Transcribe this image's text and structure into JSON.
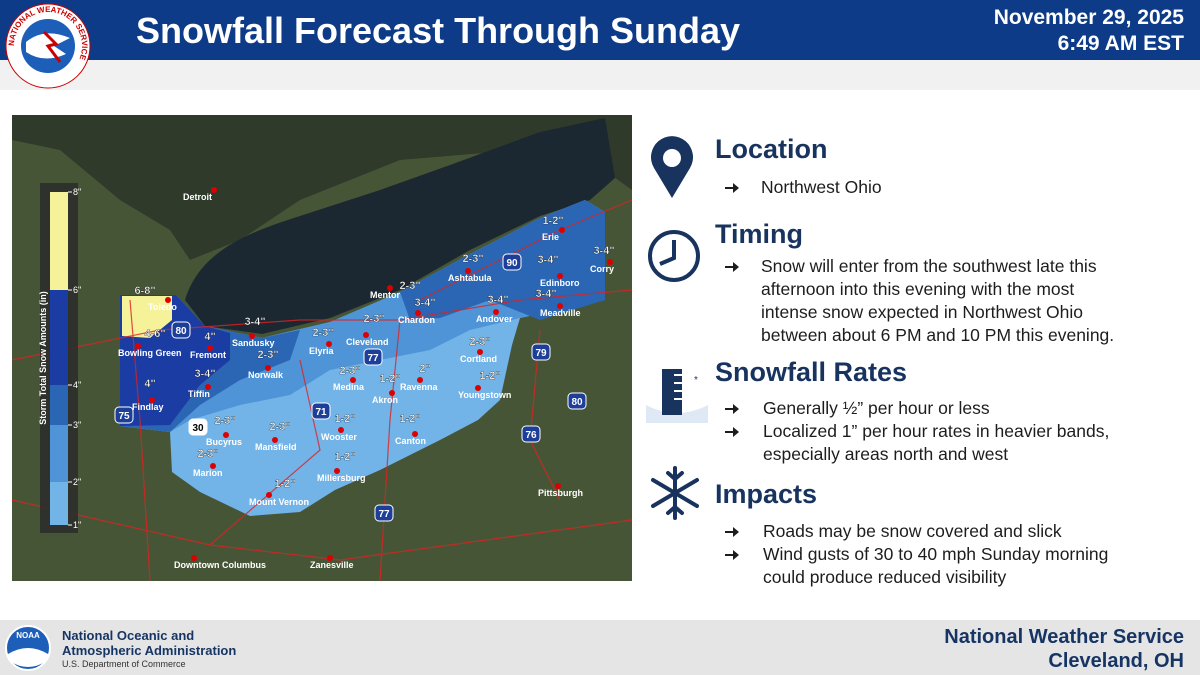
{
  "header": {
    "title": "Snowfall Forecast Through Sunday",
    "date": "November 29, 2025",
    "time": "6:49 AM EST",
    "logo_text": "NATIONAL WEATHER SERVICE"
  },
  "map": {
    "legend_title": "Storm Total Snow Amounts (in)",
    "legend_ticks": [
      "8\"",
      "6\"",
      "4\"",
      "3\"",
      "2\"",
      "1\""
    ],
    "cities": [
      "Detroit",
      "Toledo",
      "Bowling Green",
      "Findlay",
      "Fremont",
      "Tiffin",
      "Sandusky",
      "Norwalk",
      "Elyria",
      "Cleveland",
      "Medina",
      "Akron",
      "Ravenna",
      "Mentor",
      "Chardon",
      "Ashtabula",
      "Andover",
      "Erie",
      "Edinboro",
      "Meadville",
      "Corry",
      "Cortland",
      "Youngstown",
      "Canton",
      "Wooster",
      "Mansfield",
      "Bucyrus",
      "Marion",
      "Millersburg",
      "Mount Vernon",
      "Downtown Columbus",
      "Zanesville",
      "Pittsburgh"
    ],
    "amounts": [
      "6-8\"",
      "4-6\"",
      "4\"",
      "4\"",
      "3-4\"",
      "3-4\"",
      "2-3\"",
      "2-3\"",
      "2-3\"",
      "2-3\"",
      "3-4\"",
      "2-3\"",
      "1-2\"",
      "3-4\"",
      "3-4\"",
      "3-4\"",
      "3-4\"",
      "2-3\"",
      "1-2\"",
      "2\"",
      "2-3\"",
      "1-2\"",
      "1-2\"",
      "1-2\"",
      "2-3\"",
      "2-3\"",
      "2-3\"",
      "1-2\"",
      "1-2\""
    ],
    "highways": [
      "80",
      "75",
      "90",
      "77",
      "71",
      "79",
      "80",
      "76",
      "77",
      "30"
    ]
  },
  "sections": [
    {
      "heading": "Location",
      "lines": [
        "Northwest Ohio"
      ]
    },
    {
      "heading": "Timing",
      "lines": [
        "Snow will enter from the southwest late this",
        "afternoon into this evening with the most",
        "intense snow expected in Northwest Ohio",
        "between about 6 PM and 10 PM this evening."
      ]
    },
    {
      "heading": "Snowfall Rates",
      "bullets": [
        [
          "Generally ½” per hour or less"
        ],
        [
          "Localized 1” per hour rates in heavier bands,",
          "especially areas north and west"
        ]
      ]
    },
    {
      "heading": "Impacts",
      "bullets": [
        [
          "Roads may be snow covered and slick"
        ],
        [
          "Wind gusts of 30 to 40 mph Sunday morning",
          "could produce reduced visibility"
        ]
      ]
    }
  ],
  "footer": {
    "noaa": "NOAA",
    "agency_line1": "National Oceanic and",
    "agency_line2": "Atmospheric Administration",
    "department": "U.S. Department of Commerce",
    "office_line1": "National Weather Service",
    "office_line2": "Cleveland, OH"
  }
}
